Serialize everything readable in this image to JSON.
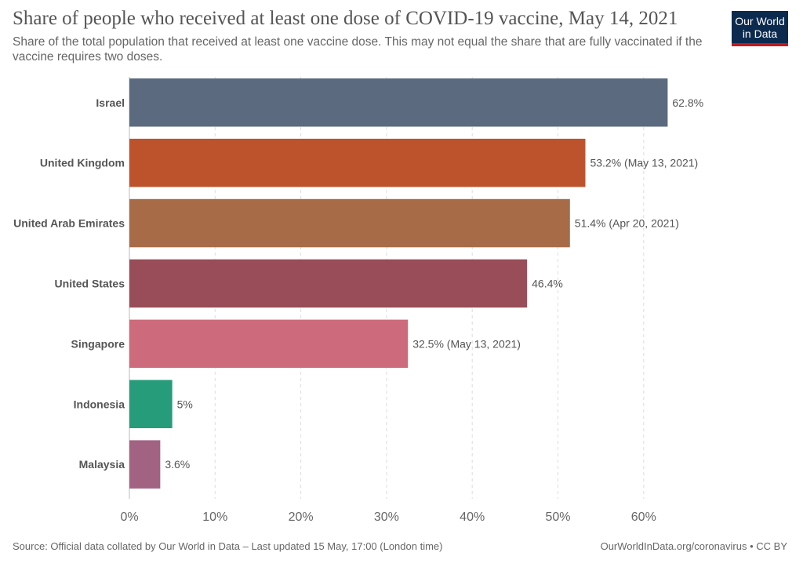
{
  "header": {
    "title": "Share of people who received at least one dose of COVID-19 vaccine, May 14, 2021",
    "subtitle": "Share of the total population that received at least one vaccine dose. This may not equal the share that are fully vaccinated if the vaccine requires two doses.",
    "logo_line1": "Our World",
    "logo_line2": "in Data",
    "logo_color": "#0b2a4e",
    "logo_accent": "#c8161d"
  },
  "footer": {
    "source": "Source: Official data collated by Our World in Data – Last updated 15 May, 17:00 (London time)",
    "link": "OurWorldInData.org/coronavirus • CC BY"
  },
  "chart_data": {
    "type": "bar",
    "orientation": "horizontal",
    "categories": [
      "Israel",
      "United Kingdom",
      "United Arab Emirates",
      "United States",
      "Singapore",
      "Indonesia",
      "Malaysia"
    ],
    "values": [
      62.8,
      53.2,
      51.4,
      46.4,
      32.5,
      5,
      3.6
    ],
    "value_labels": [
      "62.8%",
      "53.2% (May 13, 2021)",
      "51.4% (Apr 20, 2021)",
      "46.4%",
      "32.5% (May 13, 2021)",
      "5%",
      "3.6%"
    ],
    "colors": [
      "#5b6a7f",
      "#bd532d",
      "#a76c47",
      "#984d59",
      "#cd6a7b",
      "#279c7b",
      "#a26281"
    ],
    "xlim": [
      0,
      60
    ],
    "xticks": [
      0,
      10,
      20,
      30,
      40,
      50,
      60
    ],
    "xtick_labels": [
      "0%",
      "10%",
      "20%",
      "30%",
      "40%",
      "50%",
      "60%"
    ],
    "grid": "vertical dashed"
  }
}
